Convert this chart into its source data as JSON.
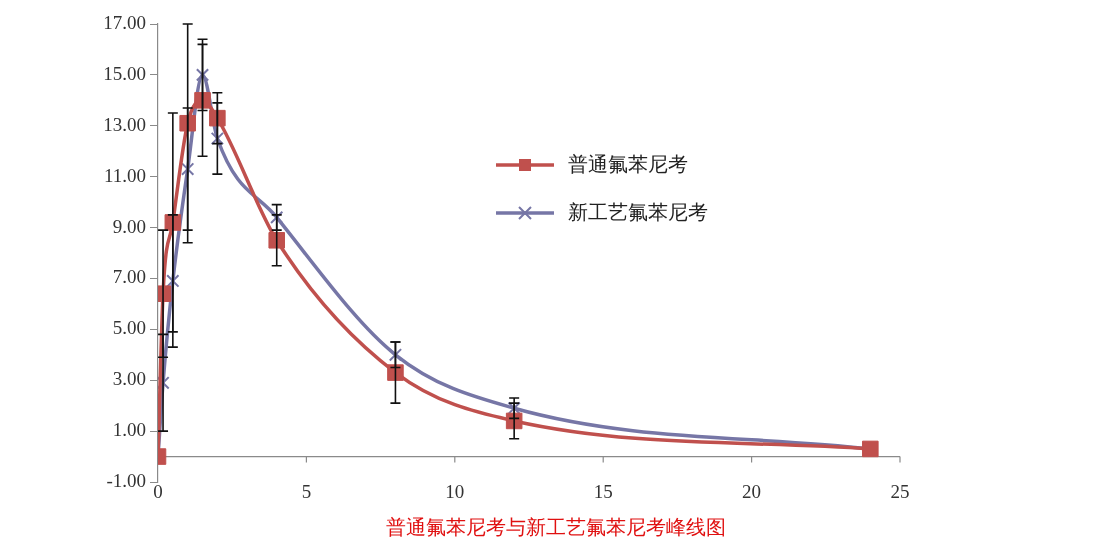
{
  "chart_data": {
    "type": "line",
    "title": "普通氟苯尼考与新工艺氟苯尼考峰线图",
    "x": [
      0,
      0.17,
      0.5,
      1,
      1.5,
      2,
      4,
      8,
      12,
      24
    ],
    "series": [
      {
        "name": "普通氟苯尼考",
        "color": "#c0504d",
        "marker": "square",
        "values": [
          0,
          6.4,
          9.2,
          13.1,
          14.0,
          13.3,
          8.5,
          3.3,
          1.4,
          0.3
        ],
        "errors": [
          null,
          2.5,
          4.3,
          [
            8.4,
            17.0
          ],
          2.2,
          1.0,
          1.0,
          1.2,
          0.7,
          null
        ]
      },
      {
        "name": "新工艺氟苯尼考",
        "color": "#7676a6",
        "marker": "cross",
        "values": [
          0,
          2.9,
          6.9,
          11.3,
          15.0,
          12.5,
          9.4,
          4.0,
          1.9,
          0.3
        ],
        "errors": [
          null,
          1.9,
          2.6,
          2.4,
          1.4,
          1.4,
          0.5,
          0.5,
          0.4,
          null
        ]
      }
    ],
    "xlim": [
      0,
      25
    ],
    "xticks": [
      0,
      5,
      10,
      15,
      20,
      25
    ],
    "ylim": [
      -1,
      17
    ],
    "yticks": [
      {
        "value": -1,
        "label": "-1.00"
      },
      {
        "value": 1,
        "label": "1.00"
      },
      {
        "value": 3,
        "label": "3.00"
      },
      {
        "value": 5,
        "label": "5.00"
      },
      {
        "value": 7,
        "label": "7.00"
      },
      {
        "value": 9,
        "label": "9.00"
      },
      {
        "value": 11,
        "label": "11.00"
      },
      {
        "value": 13,
        "label": "13.00"
      },
      {
        "value": 15,
        "label": "15.00"
      },
      {
        "value": 17,
        "label": "17.00"
      }
    ],
    "legend": "top right",
    "grid": false
  }
}
